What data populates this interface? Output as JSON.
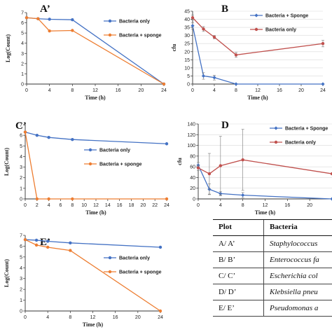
{
  "chart_data": [
    {
      "id": "A",
      "type": "line",
      "panel_label": "A’",
      "xlabel": "Time (h)",
      "ylabel": "Log(Count)",
      "xlim": [
        0,
        24
      ],
      "ylim": [
        0,
        7
      ],
      "xticks": [
        0,
        4,
        8,
        12,
        16,
        20,
        24
      ],
      "yticks": [
        0,
        1,
        2,
        3,
        4,
        5,
        6,
        7
      ],
      "legend": "top-right",
      "series": [
        {
          "name": "Bacteria only",
          "color": "#4472c4",
          "x": [
            0,
            2,
            4,
            8,
            24
          ],
          "y": [
            6.5,
            6.4,
            6.35,
            6.3,
            0
          ]
        },
        {
          "name": "Bacteria + sponge",
          "color": "#ed7d31",
          "x": [
            0,
            2,
            4,
            8,
            24
          ],
          "y": [
            6.5,
            6.4,
            5.2,
            5.25,
            0
          ]
        }
      ]
    },
    {
      "id": "B",
      "type": "line",
      "panel_label": "B",
      "xlabel": "Time (h)",
      "ylabel": "cfu",
      "xlim": [
        0,
        24
      ],
      "ylim": [
        0,
        45
      ],
      "xticks": [
        0,
        4,
        8,
        12,
        16,
        20,
        24
      ],
      "yticks": [
        0,
        5,
        10,
        15,
        20,
        25,
        30,
        35,
        40,
        45
      ],
      "legend": "top-right",
      "series": [
        {
          "name": "Bacteria + Sponge",
          "color": "#4472c4",
          "x": [
            0,
            2,
            4,
            8,
            24
          ],
          "y": [
            36,
            5,
            4,
            0,
            0
          ],
          "err": [
            2,
            2,
            1.5,
            0,
            0
          ]
        },
        {
          "name": "Bacteria only",
          "color": "#c0504d",
          "x": [
            0,
            2,
            4,
            8,
            24
          ],
          "y": [
            41,
            34,
            29,
            18,
            25
          ],
          "err": [
            1.5,
            1.5,
            1,
            1.5,
            2
          ]
        }
      ]
    },
    {
      "id": "C",
      "type": "line",
      "panel_label": "C’",
      "xlabel": "Time (h)",
      "ylabel": "Log(Count)",
      "xlim": [
        0,
        24
      ],
      "ylim": [
        0,
        7
      ],
      "xticks": [
        0,
        2,
        4,
        6,
        8,
        10,
        12,
        14,
        16,
        18,
        20,
        22,
        24
      ],
      "yticks": [
        0,
        1,
        2,
        3,
        4,
        5,
        6,
        7
      ],
      "legend": "center-right",
      "series": [
        {
          "name": "Bacteria only",
          "color": "#4472c4",
          "x": [
            0,
            2,
            4,
            8,
            24
          ],
          "y": [
            6.3,
            6.0,
            5.8,
            5.6,
            5.2
          ]
        },
        {
          "name": "Bacteria + sponge",
          "color": "#ed7d31",
          "x": [
            0,
            2,
            4,
            8,
            24
          ],
          "y": [
            6.3,
            0,
            0,
            0,
            0
          ]
        }
      ]
    },
    {
      "id": "D",
      "type": "line",
      "panel_label": "D",
      "xlabel": "Time (h)",
      "ylabel": "cfu",
      "xlim": [
        0,
        24
      ],
      "ylim": [
        0,
        140
      ],
      "xticks": [
        0,
        4,
        8,
        12,
        16,
        20
      ],
      "yticks": [
        0,
        20,
        40,
        60,
        80,
        100,
        120,
        140
      ],
      "legend": "top-right",
      "series": [
        {
          "name": "Bacteria + Sponge",
          "color": "#4472c4",
          "x": [
            0,
            2,
            4,
            8,
            24
          ],
          "y": [
            63,
            18,
            10,
            7,
            0
          ],
          "err": [
            5,
            10,
            4,
            5,
            0
          ]
        },
        {
          "name": "Bacteria only",
          "color": "#c0504d",
          "x": [
            0,
            2,
            4,
            8,
            24
          ],
          "y": [
            58,
            47,
            62,
            73,
            47
          ],
          "err": [
            5,
            38,
            55,
            57,
            0
          ]
        }
      ]
    },
    {
      "id": "E",
      "type": "line",
      "panel_label": "E’",
      "xlabel": "Time (h)",
      "ylabel": "Log(Count)",
      "xlim": [
        0,
        24
      ],
      "ylim": [
        0,
        7
      ],
      "xticks": [
        0,
        4,
        8,
        12,
        16,
        20,
        24
      ],
      "yticks": [
        0,
        1,
        2,
        3,
        4,
        5,
        6,
        7
      ],
      "legend": "center-right",
      "series": [
        {
          "name": "Bacteria only",
          "color": "#4472c4",
          "x": [
            0,
            2,
            4,
            8,
            24
          ],
          "y": [
            6.6,
            6.55,
            6.45,
            6.3,
            5.9
          ]
        },
        {
          "name": "Bacteria + sponge",
          "color": "#ed7d31",
          "x": [
            0,
            2,
            4,
            8,
            24
          ],
          "y": [
            6.6,
            6.1,
            5.9,
            5.6,
            0
          ]
        }
      ]
    }
  ],
  "table": {
    "headers": [
      "Plot",
      "Bacteria"
    ],
    "rows": [
      [
        "A/ A’",
        "Staphylococcus"
      ],
      [
        "B/ B’",
        "Enterococcus fa"
      ],
      [
        "C/ C’",
        "Escherichia col"
      ],
      [
        "D/ D’",
        "Klebsiella pneu"
      ],
      [
        "E/ E’",
        "Pseudomonas a"
      ]
    ]
  }
}
